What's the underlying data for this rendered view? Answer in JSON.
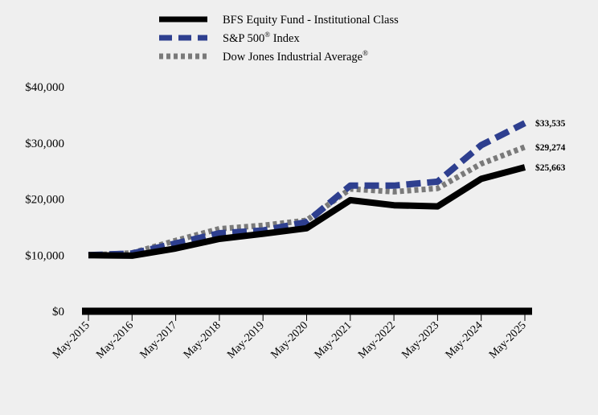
{
  "chart_data": {
    "type": "line",
    "categories": [
      "May-2015",
      "May-2016",
      "May-2017",
      "May-2018",
      "May-2019",
      "May-2020",
      "May-2021",
      "May-2022",
      "May-2023",
      "May-2024",
      "May-2025"
    ],
    "ylim": [
      0,
      40000
    ],
    "yticks": [
      {
        "value": 0,
        "label": "$0"
      },
      {
        "value": 10000,
        "label": "$10,000"
      },
      {
        "value": 20000,
        "label": "$20,000"
      },
      {
        "value": 30000,
        "label": "$30,000"
      },
      {
        "value": 40000,
        "label": "$40,000"
      }
    ],
    "legend_position": "top-center",
    "grid": false,
    "series": [
      {
        "key": "bfs",
        "name": "BFS Equity Fund - Institutional Class",
        "sup": "",
        "color": "#000000",
        "style": "solid",
        "values": [
          10000,
          9900,
          11200,
          12900,
          13800,
          14800,
          19800,
          18900,
          18700,
          23600,
          25663
        ],
        "end_label": "$25,663"
      },
      {
        "key": "sp500",
        "name": "S&P 500",
        "sup": "®",
        "name_suffix": " Index",
        "color": "#2e3f8f",
        "style": "dashed",
        "values": [
          10000,
          10300,
          12100,
          13900,
          14400,
          15900,
          22400,
          22400,
          23100,
          29600,
          33535
        ],
        "end_label": "$33,535"
      },
      {
        "key": "djia",
        "name": "Dow Jones Industrial Average",
        "sup": "®",
        "name_suffix": "",
        "color": "#7a7a7a",
        "style": "dotted",
        "values": [
          10000,
          10400,
          12600,
          14700,
          15300,
          16200,
          21800,
          21300,
          21900,
          26300,
          29274
        ],
        "end_label": "$29,274"
      }
    ]
  }
}
